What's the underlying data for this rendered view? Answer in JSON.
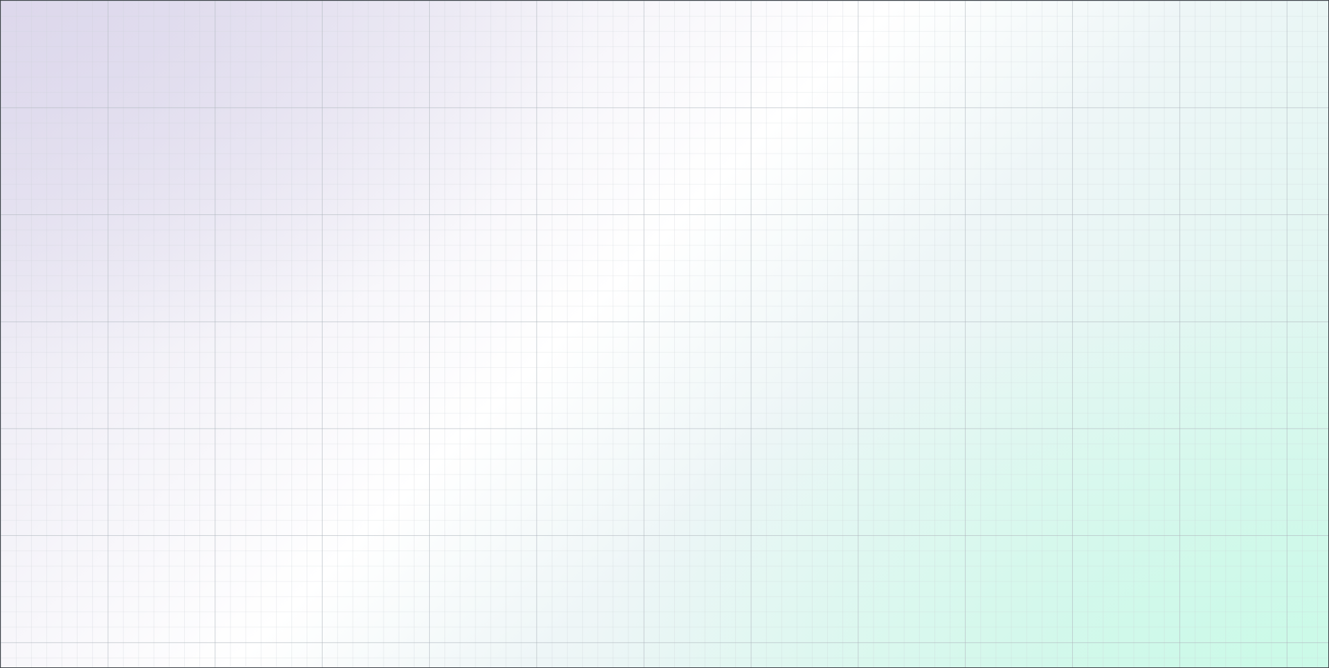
{
  "canvas": {
    "background": {
      "top_left_color": "#ddd8ec",
      "center_color": "#ffffff",
      "top_right_color": "#ffffff",
      "bottom_right_color": "#cbfae8",
      "bottom_left_color": "#ffffff"
    },
    "grid": {
      "minor_line_color": "#c9cfd4",
      "major_line_color": "#aab2ba"
    }
  }
}
